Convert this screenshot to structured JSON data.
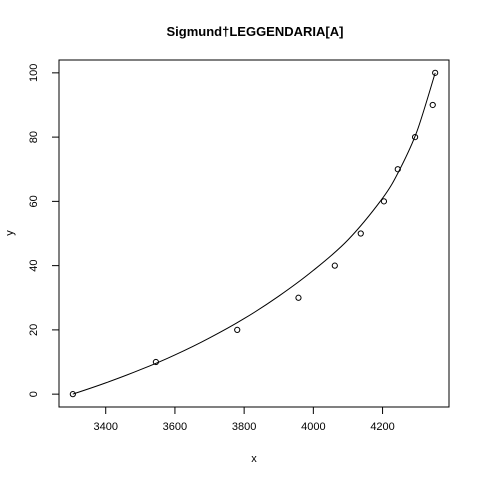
{
  "chart_data": {
    "type": "scatter",
    "title": "Sigmund†LEGGENDARIA[A]",
    "xlabel": "x",
    "ylabel": "y",
    "xlim": [
      3265,
      4392
    ],
    "ylim": [
      -4,
      104
    ],
    "x_ticks": [
      "3400",
      "3600",
      "3800",
      "4000",
      "4200"
    ],
    "x_tick_values": [
      3400,
      3600,
      3800,
      4000,
      4200
    ],
    "y_ticks": [
      "0",
      "20",
      "40",
      "60",
      "80",
      "100"
    ],
    "y_tick_values": [
      0,
      20,
      40,
      60,
      80,
      100
    ],
    "grid": false,
    "legend": "none",
    "points": {
      "x": [
        3305,
        3545,
        3780,
        3957,
        4062,
        4137,
        4204,
        4244,
        4294,
        4345,
        4352
      ],
      "y": [
        0,
        10,
        20,
        30,
        40,
        50,
        60,
        70,
        80,
        90,
        100
      ]
    },
    "fitted_curve": {
      "x": [
        3305,
        3400,
        3500,
        3600,
        3700,
        3800,
        3900,
        4000,
        4100,
        4200,
        4250,
        4300,
        4352
      ],
      "y": [
        0,
        3.5,
        7.6,
        12.2,
        17.5,
        23.5,
        30.5,
        38.5,
        48.0,
        61.0,
        70.0,
        82.0,
        100
      ]
    }
  }
}
